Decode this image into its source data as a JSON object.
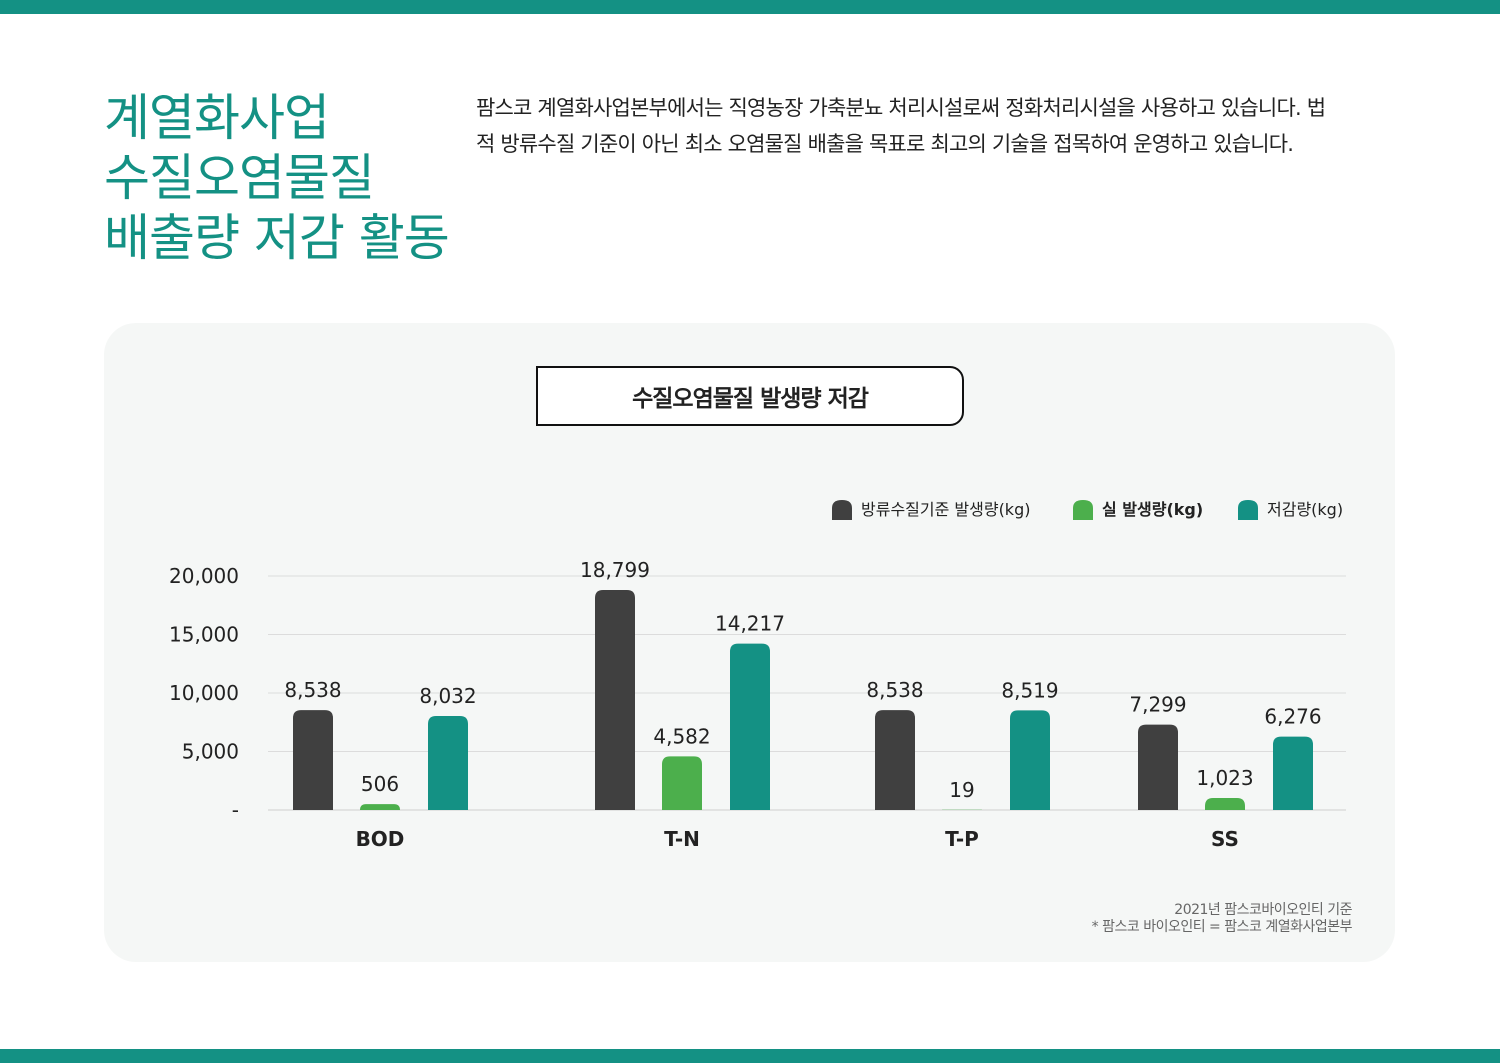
{
  "heading": {
    "lines": [
      "계열화사업",
      "수질오염물질",
      "배출량 저감 활동"
    ]
  },
  "intro": "팜스코 계열화사업본부에서는 직영농장 가축분뇨 처리시설로써 정화처리시설을 사용하고 있습니다. 법적 방류수질 기준이 아닌 최소 오염물질 배출을 목표로 최고의 기술을 접목하여 운영하고 있습니다.",
  "colors": {
    "accent": "#149184",
    "standard": "#404040",
    "actual": "#4caf4c",
    "reduction": "#149184"
  },
  "chart_data": {
    "type": "bar",
    "title": "수질오염물질 발생량 저감",
    "categories": [
      "BOD",
      "T-N",
      "T-P",
      "SS"
    ],
    "series": [
      {
        "name": "방류수질기준 발생량(kg)",
        "values": [
          8538,
          18799,
          8538,
          7299
        ],
        "labels": [
          "8,538",
          "18,799",
          "8,538",
          "7,299"
        ],
        "color": "#404040"
      },
      {
        "name": "실 발생량(kg)",
        "values": [
          506,
          4582,
          19,
          1023
        ],
        "labels": [
          "506",
          "4,582",
          "19",
          "1,023"
        ],
        "color": "#4caf4c"
      },
      {
        "name": "저감량(kg)",
        "values": [
          8032,
          14217,
          8519,
          6276
        ],
        "labels": [
          "8,032",
          "14,217",
          "8,519",
          "6,276"
        ],
        "color": "#149184"
      }
    ],
    "yticks": [
      0,
      5000,
      10000,
      15000,
      20000
    ],
    "ytick_labels": [
      "-",
      "5,000",
      "10,000",
      "15,000",
      "20,000"
    ],
    "ylim": [
      0,
      20000
    ],
    "grid": true,
    "legend": "top-right"
  },
  "footnote": {
    "line1": "2021년 팜스코바이오인티 기준",
    "line2": "* 팜스코 바이오인티 = 팜스코 계열화사업본부"
  }
}
